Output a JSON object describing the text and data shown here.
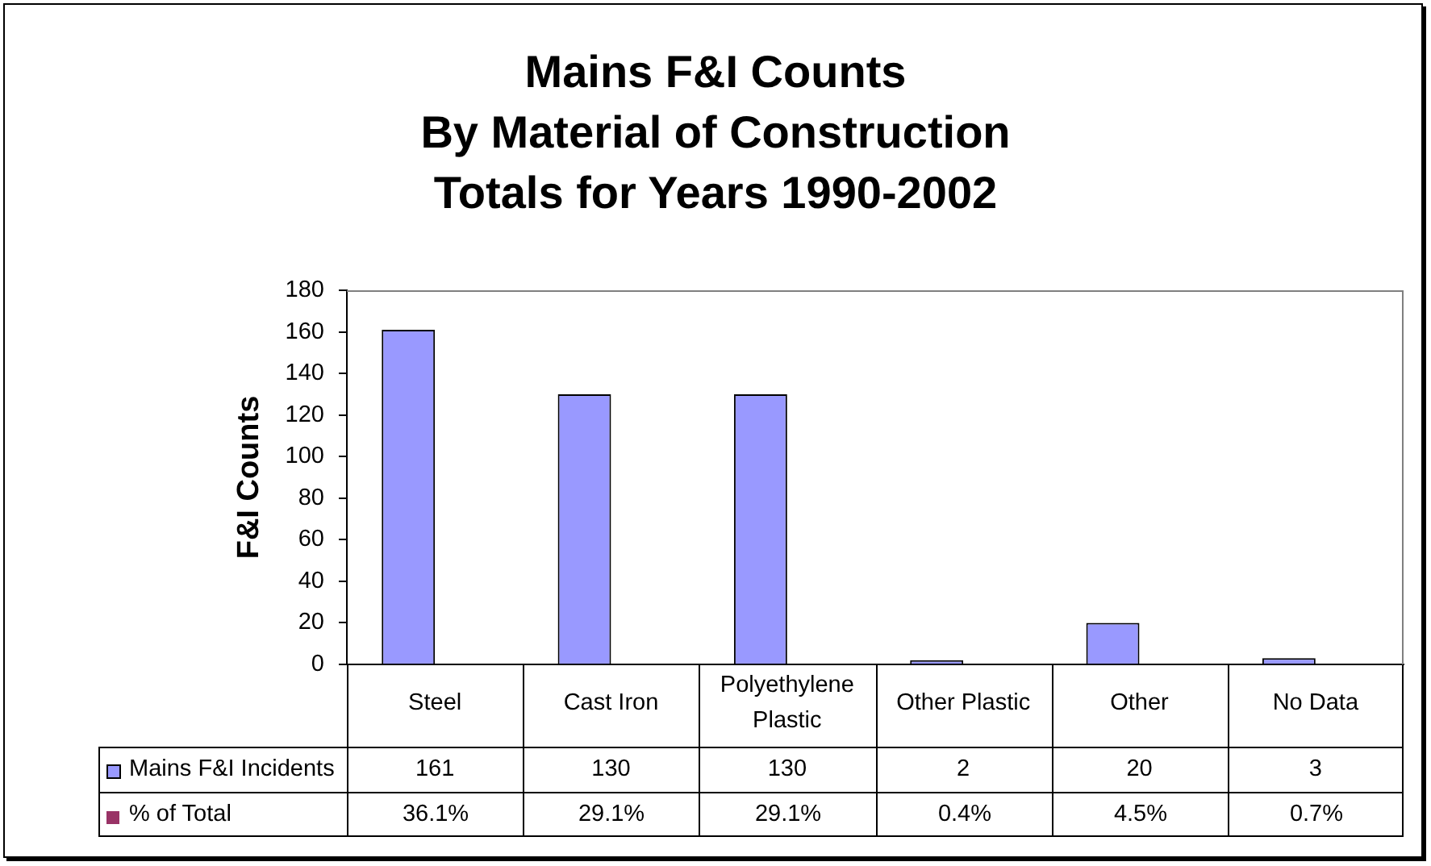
{
  "chart_data": [
    {
      "type": "bar",
      "title": "Mains F&I Counts\nBy Material of Construction\nTotals for Years 1990-2002",
      "ylabel": "F&I Counts",
      "categories": [
        "Steel",
        "Cast Iron",
        "Polyethylene Plastic",
        "Other Plastic",
        "Other",
        "No Data"
      ],
      "series": [
        {
          "name": "Mains F&I Incidents",
          "color": "#9999ff",
          "values": [
            161,
            130,
            130,
            2,
            20,
            3
          ]
        }
      ],
      "ylim": [
        0,
        180
      ],
      "yticks": [
        0,
        20,
        40,
        60,
        80,
        100,
        120,
        140,
        160,
        180
      ],
      "data_labels": true,
      "legend": "bottom"
    },
    {
      "type": "other",
      "series": [
        {
          "name": "% of Total",
          "color": "#993366",
          "values": [
            36.1,
            29.1,
            29.1,
            0.4,
            4.5,
            0.7
          ],
          "value_labels": [
            "36.1%",
            "29.1%",
            "29.1%",
            "0.4%",
            "4.5%",
            "0.7%"
          ]
        }
      ],
      "legend": "bottom"
    }
  ]
}
